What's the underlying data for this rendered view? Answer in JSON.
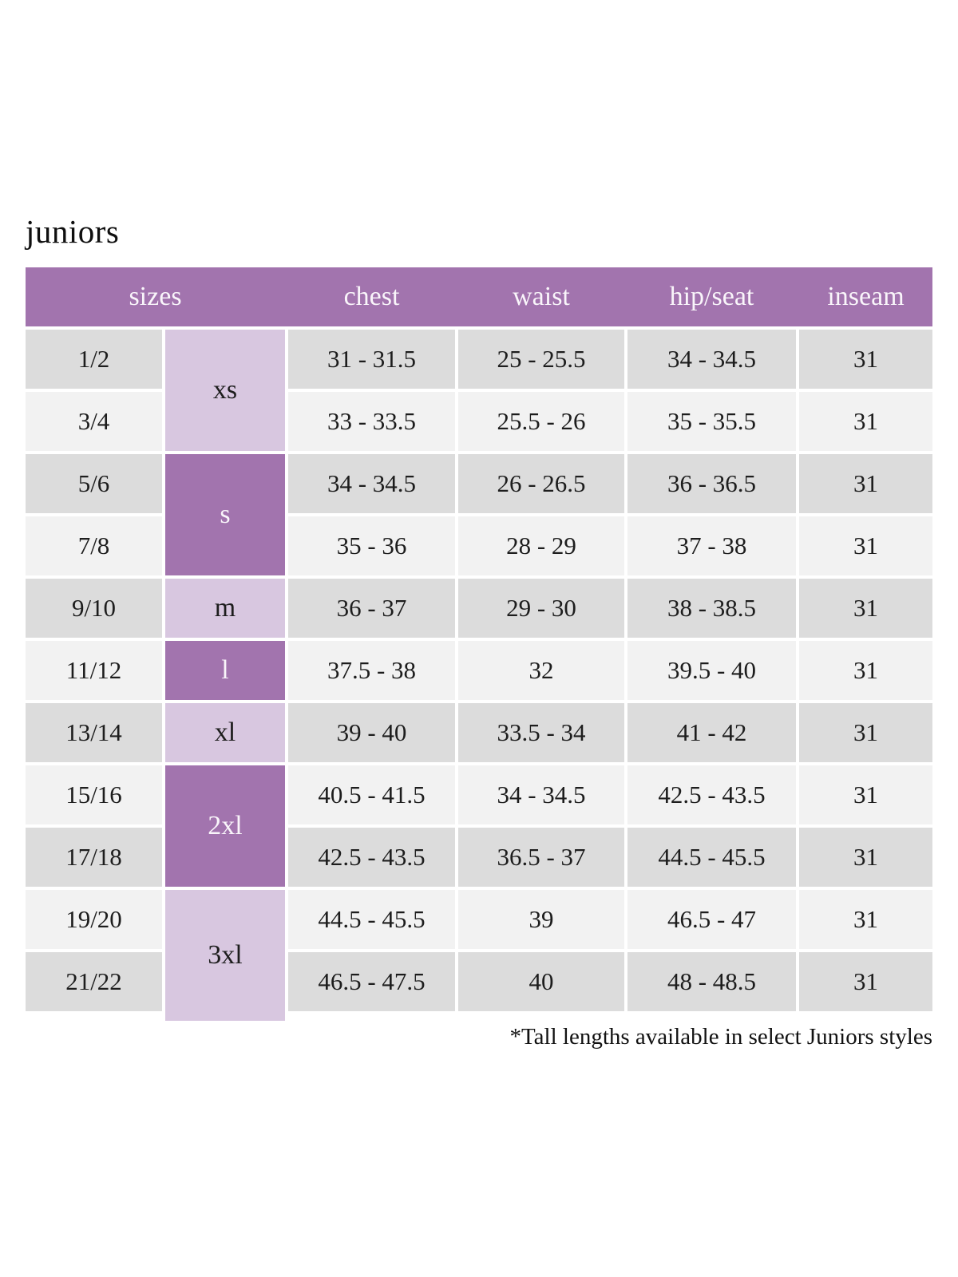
{
  "title": "juniors",
  "footnote": "*Tall lengths available in select Juniors styles",
  "table": {
    "column_headers": [
      "sizes",
      "chest",
      "waist",
      "hip/seat",
      "inseam"
    ],
    "size_groups": [
      {
        "label": "xs",
        "tone": "light",
        "row_span": 2
      },
      {
        "label": "s",
        "tone": "dark",
        "row_span": 2
      },
      {
        "label": "m",
        "tone": "light",
        "row_span": 1
      },
      {
        "label": "l",
        "tone": "dark",
        "row_span": 1
      },
      {
        "label": "xl",
        "tone": "light",
        "row_span": 1
      },
      {
        "label": "2xl",
        "tone": "dark",
        "row_span": 2
      },
      {
        "label": "3xl",
        "tone": "light",
        "row_span": 2
      }
    ],
    "rows": [
      {
        "size": "1/2",
        "chest": "31 - 31.5",
        "waist": "25 - 25.5",
        "hip_seat": "34 - 34.5",
        "inseam": "31"
      },
      {
        "size": "3/4",
        "chest": "33 - 33.5",
        "waist": "25.5 - 26",
        "hip_seat": "35 - 35.5",
        "inseam": "31"
      },
      {
        "size": "5/6",
        "chest": "34 - 34.5",
        "waist": "26 - 26.5",
        "hip_seat": "36 - 36.5",
        "inseam": "31"
      },
      {
        "size": "7/8",
        "chest": "35 - 36",
        "waist": "28 - 29",
        "hip_seat": "37 - 38",
        "inseam": "31"
      },
      {
        "size": "9/10",
        "chest": "36 - 37",
        "waist": "29 - 30",
        "hip_seat": "38 - 38.5",
        "inseam": "31"
      },
      {
        "size": "11/12",
        "chest": "37.5 - 38",
        "waist": "32",
        "hip_seat": "39.5 - 40",
        "inseam": "31"
      },
      {
        "size": "13/14",
        "chest": "39 - 40",
        "waist": "33.5 - 34",
        "hip_seat": "41 - 42",
        "inseam": "31"
      },
      {
        "size": "15/16",
        "chest": "40.5 - 41.5",
        "waist": "34 - 34.5",
        "hip_seat": "42.5 - 43.5",
        "inseam": "31"
      },
      {
        "size": "17/18",
        "chest": "42.5 - 43.5",
        "waist": "36.5 - 37",
        "hip_seat": "44.5 - 45.5",
        "inseam": "31"
      },
      {
        "size": "19/20",
        "chest": "44.5 - 45.5",
        "waist": "39",
        "hip_seat": "46.5 - 47",
        "inseam": "31"
      },
      {
        "size": "21/22",
        "chest": "46.5 - 47.5",
        "waist": "40",
        "hip_seat": "48 - 48.5",
        "inseam": "31"
      }
    ]
  },
  "colors": {
    "header_purple": "#a274ae",
    "letter_dark_purple": "#a274ae",
    "letter_light_purple": "#d8c7e0",
    "row_dark_gray": "#dcdcdc",
    "row_light_gray": "#f2f2f2",
    "text_dark": "#1d1d1d",
    "text_light": "#f9f5fa"
  }
}
